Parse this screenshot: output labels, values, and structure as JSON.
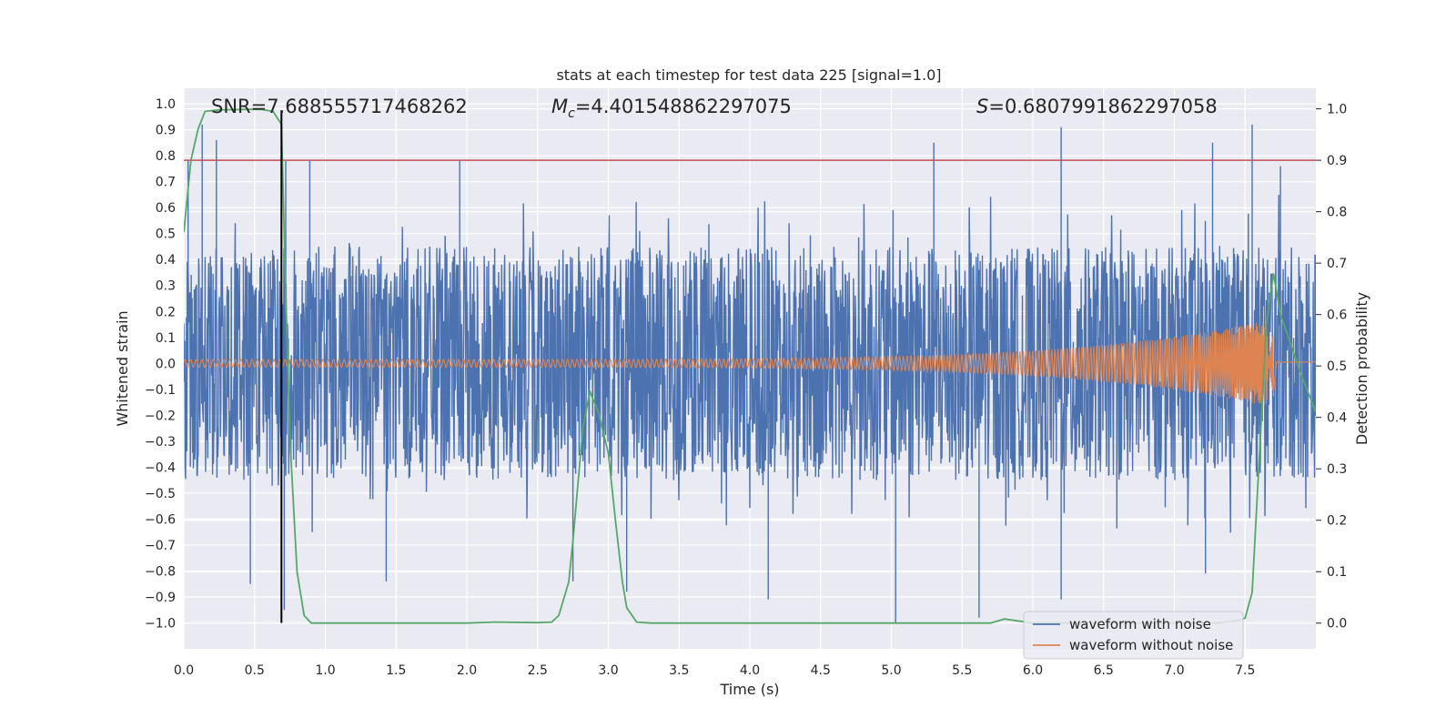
{
  "chart_data": {
    "type": "line",
    "title": "stats at each timestep for test data 225 [signal=1.0]",
    "xlabel": "Time (s)",
    "ylabel_left": "Whitened strain",
    "ylabel_right": "Detection probability",
    "xlim": [
      0.0,
      8.0
    ],
    "ylim_left": [
      -1.1,
      1.06
    ],
    "ylim_right": [
      -0.05,
      1.04
    ],
    "xticks": [
      "0.0",
      "0.5",
      "1.0",
      "1.5",
      "2.0",
      "2.5",
      "3.0",
      "3.5",
      "4.0",
      "4.5",
      "5.0",
      "5.5",
      "6.0",
      "6.5",
      "7.0",
      "7.5"
    ],
    "xtick_values": [
      0.0,
      0.5,
      1.0,
      1.5,
      2.0,
      2.5,
      3.0,
      3.5,
      4.0,
      4.5,
      5.0,
      5.5,
      6.0,
      6.5,
      7.0,
      7.5
    ],
    "yticks_left": [
      "1.0",
      "0.9",
      "0.8",
      "0.7",
      "0.6",
      "0.5",
      "0.4",
      "0.3",
      "0.2",
      "0.1",
      "0.0",
      "−0.1",
      "−0.2",
      "−0.3",
      "−0.4",
      "−0.5",
      "−0.6",
      "−0.7",
      "−0.8",
      "−0.9",
      "−1.0"
    ],
    "ytick_values_left": [
      1.0,
      0.9,
      0.8,
      0.7,
      0.6,
      0.5,
      0.4,
      0.3,
      0.2,
      0.1,
      0.0,
      -0.1,
      -0.2,
      -0.3,
      -0.4,
      -0.5,
      -0.6,
      -0.7,
      -0.8,
      -0.9,
      -1.0
    ],
    "yticks_right": [
      "1.0",
      "0.9",
      "0.8",
      "0.7",
      "0.6",
      "0.5",
      "0.4",
      "0.3",
      "0.2",
      "0.1",
      "0.0"
    ],
    "ytick_values_right": [
      1.0,
      0.9,
      0.8,
      0.7,
      0.6,
      0.5,
      0.4,
      0.3,
      0.2,
      0.1,
      0.0
    ],
    "annotations": {
      "snr": "SNR=7.688555717468262",
      "mc_symbol": "M",
      "mc_sub": "c",
      "mc_value": "=4.401548862297075",
      "s_symbol": "S",
      "s_value": "=0.6807991862297058"
    },
    "threshold_line": {
      "axis": "right",
      "y": 0.9,
      "color": "#c44e52"
    },
    "vertical_marker": {
      "x": 0.69,
      "color": "#000000"
    },
    "series": [
      {
        "name": "waveform with noise",
        "axis": "left",
        "color": "#4c72b0",
        "description_only": false,
        "envelope": {
          "x_start": 0.0,
          "x_end": 8.0,
          "typical_abs": 0.45,
          "min": -1.0,
          "max": 0.92
        },
        "notable_spikes": [
          {
            "x": 0.13,
            "y": 0.92
          },
          {
            "x": 0.23,
            "y": 0.86
          },
          {
            "x": 0.03,
            "y": 0.78
          },
          {
            "x": 0.72,
            "y": 0.78
          },
          {
            "x": 0.89,
            "y": 0.78
          },
          {
            "x": 1.95,
            "y": 0.78
          },
          {
            "x": 5.3,
            "y": 0.85
          },
          {
            "x": 6.2,
            "y": 0.91
          },
          {
            "x": 7.27,
            "y": 0.85
          },
          {
            "x": 7.55,
            "y": 0.92
          },
          {
            "x": 7.75,
            "y": 0.76
          },
          {
            "x": 0.71,
            "y": -0.95
          },
          {
            "x": 0.47,
            "y": -0.85
          },
          {
            "x": 2.75,
            "y": -0.84
          },
          {
            "x": 3.13,
            "y": -0.88
          },
          {
            "x": 4.13,
            "y": -0.91
          },
          {
            "x": 5.03,
            "y": -1.0
          },
          {
            "x": 5.62,
            "y": -0.98
          },
          {
            "x": 6.2,
            "y": -0.91
          },
          {
            "x": 7.22,
            "y": -0.81
          },
          {
            "x": 1.43,
            "y": -0.84
          }
        ]
      },
      {
        "name": "waveform without noise",
        "axis": "left",
        "color": "#dd8452",
        "chirp": {
          "x_start": 0.0,
          "x_merge": 7.7,
          "amp_start": 0.015,
          "amp_end": 0.17
        }
      },
      {
        "name": "detection probability",
        "axis": "right",
        "color": "#55a868",
        "x": [
          0.0,
          0.05,
          0.1,
          0.15,
          0.25,
          0.45,
          0.55,
          0.63,
          0.69,
          0.72,
          0.75,
          0.8,
          0.85,
          0.9,
          0.95,
          1.0,
          1.5,
          2.0,
          2.2,
          2.5,
          2.6,
          2.65,
          2.72,
          2.75,
          2.82,
          2.87,
          2.93,
          3.0,
          3.05,
          3.1,
          3.13,
          3.2,
          3.3,
          5.7,
          5.8,
          6.0,
          7.3,
          7.45,
          7.5,
          7.55,
          7.6,
          7.65,
          7.7,
          7.75,
          7.8,
          7.9,
          8.0
        ],
        "y": [
          0.76,
          0.9,
          0.96,
          0.995,
          0.998,
          0.999,
          0.999,
          0.995,
          0.97,
          0.64,
          0.36,
          0.1,
          0.015,
          0.0,
          0.0,
          0.0,
          0.0,
          0.0,
          0.002,
          0.001,
          0.002,
          0.015,
          0.08,
          0.16,
          0.38,
          0.45,
          0.41,
          0.33,
          0.2,
          0.08,
          0.03,
          0.002,
          0.0,
          0.0,
          0.008,
          0.0,
          0.0,
          0.005,
          0.01,
          0.06,
          0.32,
          0.58,
          0.68,
          0.6,
          0.56,
          0.48,
          0.41
        ]
      }
    ],
    "legend": {
      "location": "lower right",
      "entries": [
        {
          "label": "waveform with noise",
          "color": "#4c72b0"
        },
        {
          "label": "waveform without noise",
          "color": "#dd8452"
        }
      ]
    }
  }
}
